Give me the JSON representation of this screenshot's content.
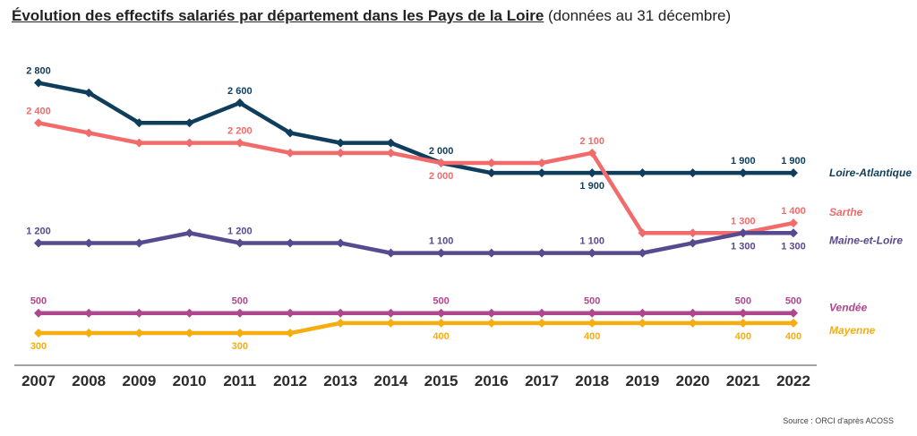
{
  "title": "Évolution des effectifs salariés par département dans les Pays de la Loire",
  "subtitle": "(données au 31 décembre)",
  "source": "Source : ORCI d'après ACOSS",
  "chart_data": {
    "type": "line",
    "x": [
      "2007",
      "2008",
      "2009",
      "2010",
      "2011",
      "2012",
      "2013",
      "2014",
      "2015",
      "2016",
      "2017",
      "2018",
      "2019",
      "2020",
      "2021",
      "2022"
    ],
    "ylim": [
      0,
      3000
    ],
    "grid": false,
    "legend": "right",
    "series": [
      {
        "name": "Loire-Atlantique",
        "color": "#0f3d5c",
        "values": [
          2800,
          2700,
          2400,
          2400,
          2600,
          2300,
          2200,
          2200,
          2000,
          1900,
          1900,
          1900,
          1900,
          1900,
          1900,
          1900
        ],
        "labels": [
          {
            "i": 0,
            "text": "2 800",
            "pos": "above"
          },
          {
            "i": 4,
            "text": "2 600",
            "pos": "above"
          },
          {
            "i": 8,
            "text": "2 000",
            "pos": "above"
          },
          {
            "i": 11,
            "text": "1 900",
            "pos": "below"
          },
          {
            "i": 14,
            "text": "1 900",
            "pos": "above"
          },
          {
            "i": 15,
            "text": "1 900",
            "pos": "above"
          }
        ]
      },
      {
        "name": "Sarthe",
        "color": "#f26b6b",
        "values": [
          2400,
          2300,
          2200,
          2200,
          2200,
          2100,
          2100,
          2100,
          2000,
          2000,
          2000,
          2100,
          1300,
          1300,
          1300,
          1400
        ],
        "labels": [
          {
            "i": 0,
            "text": "2 400",
            "pos": "above"
          },
          {
            "i": 4,
            "text": "2 200",
            "pos": "above"
          },
          {
            "i": 8,
            "text": "2 000",
            "pos": "below"
          },
          {
            "i": 11,
            "text": "2 100",
            "pos": "above"
          },
          {
            "i": 14,
            "text": "1 300",
            "pos": "above"
          },
          {
            "i": 15,
            "text": "1 400",
            "pos": "above"
          }
        ]
      },
      {
        "name": "Maine-et-Loire",
        "color": "#574a8e",
        "values": [
          1200,
          1200,
          1200,
          1300,
          1200,
          1200,
          1200,
          1100,
          1100,
          1100,
          1100,
          1100,
          1100,
          1200,
          1300,
          1300
        ],
        "labels": [
          {
            "i": 0,
            "text": "1 200",
            "pos": "above"
          },
          {
            "i": 4,
            "text": "1 200",
            "pos": "above"
          },
          {
            "i": 8,
            "text": "1 100",
            "pos": "above"
          },
          {
            "i": 11,
            "text": "1 100",
            "pos": "above"
          },
          {
            "i": 14,
            "text": "1 300",
            "pos": "below"
          },
          {
            "i": 15,
            "text": "1 300",
            "pos": "below"
          }
        ]
      },
      {
        "name": "Vendée",
        "color": "#b0468e",
        "values": [
          500,
          500,
          500,
          500,
          500,
          500,
          500,
          500,
          500,
          500,
          500,
          500,
          500,
          500,
          500,
          500
        ],
        "labels": [
          {
            "i": 0,
            "text": "500",
            "pos": "above"
          },
          {
            "i": 4,
            "text": "500",
            "pos": "above"
          },
          {
            "i": 8,
            "text": "500",
            "pos": "above"
          },
          {
            "i": 11,
            "text": "500",
            "pos": "above"
          },
          {
            "i": 14,
            "text": "500",
            "pos": "above"
          },
          {
            "i": 15,
            "text": "500",
            "pos": "above"
          }
        ]
      },
      {
        "name": "Mayenne",
        "color": "#f5ad10",
        "values": [
          300,
          300,
          300,
          300,
          300,
          300,
          400,
          400,
          400,
          400,
          400,
          400,
          400,
          400,
          400,
          400
        ],
        "labels": [
          {
            "i": 0,
            "text": "300",
            "pos": "below"
          },
          {
            "i": 4,
            "text": "300",
            "pos": "below"
          },
          {
            "i": 8,
            "text": "400",
            "pos": "below"
          },
          {
            "i": 11,
            "text": "400",
            "pos": "below"
          },
          {
            "i": 14,
            "text": "400",
            "pos": "below"
          },
          {
            "i": 15,
            "text": "400",
            "pos": "below"
          }
        ]
      }
    ]
  }
}
